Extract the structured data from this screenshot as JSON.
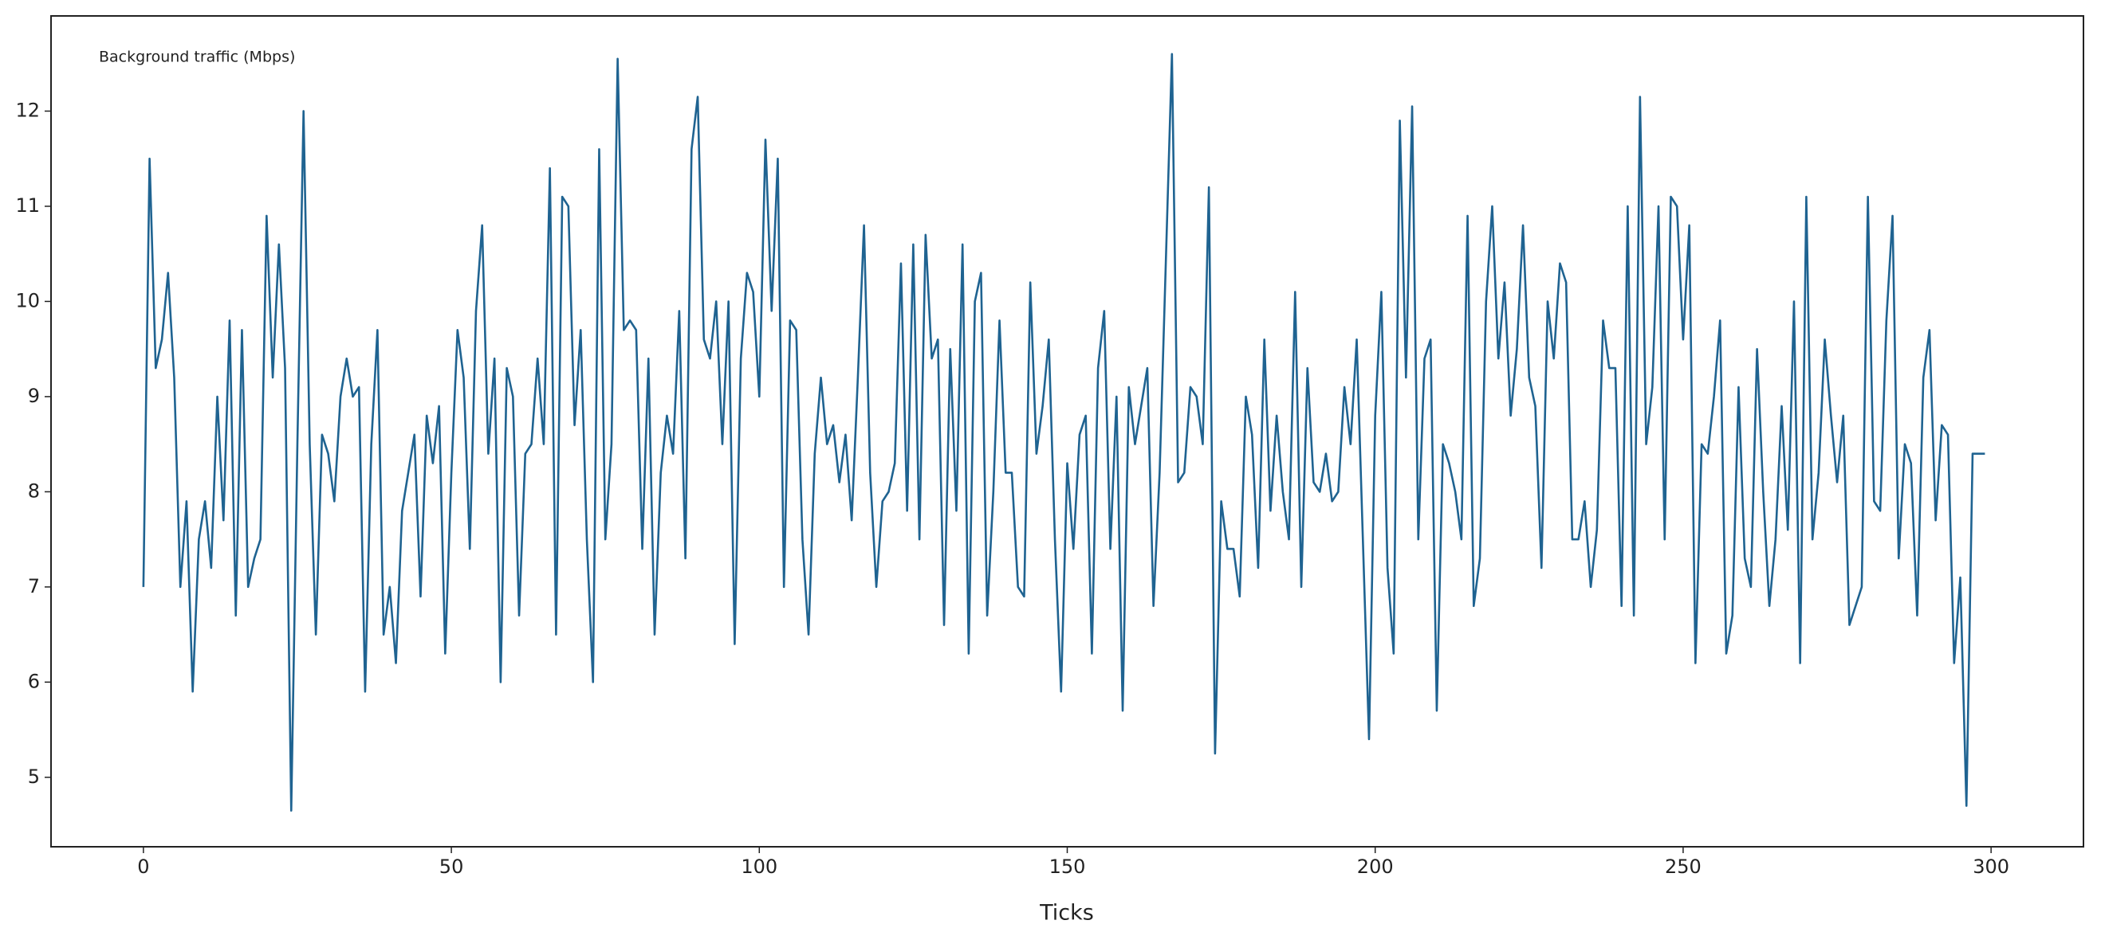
{
  "chart_data": {
    "type": "line",
    "annotation": "Background traffic (Mbps)",
    "xlabel": "Ticks",
    "color": "#1f6391",
    "x": [
      0,
      1,
      2,
      3,
      4,
      5,
      6,
      7,
      8,
      9,
      10,
      11,
      12,
      13,
      14,
      15,
      16,
      17,
      18,
      19,
      20,
      21,
      22,
      23,
      24,
      25,
      26,
      27,
      28,
      29,
      30,
      31,
      32,
      33,
      34,
      35,
      36,
      37,
      38,
      39,
      40,
      41,
      42,
      43,
      44,
      45,
      46,
      47,
      48,
      49,
      50,
      51,
      52,
      53,
      54,
      55,
      56,
      57,
      58,
      59,
      60,
      61,
      62,
      63,
      64,
      65,
      66,
      67,
      68,
      69,
      70,
      71,
      72,
      73,
      74,
      75,
      76,
      77,
      78,
      79,
      80,
      81,
      82,
      83,
      84,
      85,
      86,
      87,
      88,
      89,
      90,
      91,
      92,
      93,
      94,
      95,
      96,
      97,
      98,
      99,
      100,
      101,
      102,
      103,
      104,
      105,
      106,
      107,
      108,
      109,
      110,
      111,
      112,
      113,
      114,
      115,
      116,
      117,
      118,
      119,
      120,
      121,
      122,
      123,
      124,
      125,
      126,
      127,
      128,
      129,
      130,
      131,
      132,
      133,
      134,
      135,
      136,
      137,
      138,
      139,
      140,
      141,
      142,
      143,
      144,
      145,
      146,
      147,
      148,
      149,
      150,
      151,
      152,
      153,
      154,
      155,
      156,
      157,
      158,
      159,
      160,
      161,
      162,
      163,
      164,
      165,
      166,
      167,
      168,
      169,
      170,
      171,
      172,
      173,
      174,
      175,
      176,
      177,
      178,
      179,
      180,
      181,
      182,
      183,
      184,
      185,
      186,
      187,
      188,
      189,
      190,
      191,
      192,
      193,
      194,
      195,
      196,
      197,
      198,
      199,
      200,
      201,
      202,
      203,
      204,
      205,
      206,
      207,
      208,
      209,
      210,
      211,
      212,
      213,
      214,
      215,
      216,
      217,
      218,
      219,
      220,
      221,
      222,
      223,
      224,
      225,
      226,
      227,
      228,
      229,
      230,
      231,
      232,
      233,
      234,
      235,
      236,
      237,
      238,
      239,
      240,
      241,
      242,
      243,
      244,
      245,
      246,
      247,
      248,
      249,
      250,
      251,
      252,
      253,
      254,
      255,
      256,
      257,
      258,
      259,
      260,
      261,
      262,
      263,
      264,
      265,
      266,
      267,
      268,
      269,
      270,
      271,
      272,
      273,
      274,
      275,
      276,
      277,
      278,
      279,
      280,
      281,
      282,
      283,
      284,
      285,
      286,
      287,
      288,
      289,
      290,
      291,
      292,
      293,
      294,
      295,
      296,
      297,
      298,
      299
    ],
    "values": [
      7.0,
      11.5,
      9.3,
      9.6,
      10.3,
      9.2,
      7.0,
      7.9,
      5.9,
      7.5,
      7.9,
      7.2,
      9.0,
      7.7,
      9.8,
      6.7,
      9.7,
      7.0,
      7.3,
      7.5,
      10.9,
      9.2,
      10.6,
      9.3,
      4.65,
      8.5,
      12.0,
      8.5,
      6.5,
      8.6,
      8.4,
      7.9,
      9.0,
      9.4,
      9.0,
      9.1,
      5.9,
      8.5,
      9.7,
      6.5,
      7.0,
      6.2,
      7.8,
      8.2,
      8.6,
      6.9,
      8.8,
      8.3,
      8.9,
      6.3,
      8.2,
      9.7,
      9.2,
      7.4,
      9.9,
      10.8,
      8.4,
      9.4,
      6.0,
      9.3,
      9.0,
      6.7,
      8.4,
      8.5,
      9.4,
      8.5,
      11.4,
      6.5,
      11.1,
      11.0,
      8.7,
      9.7,
      7.5,
      6.0,
      11.6,
      7.5,
      8.5,
      12.55,
      9.7,
      9.8,
      9.7,
      7.4,
      9.4,
      6.5,
      8.2,
      8.8,
      8.4,
      9.9,
      7.3,
      11.6,
      12.15,
      9.6,
      9.4,
      10.0,
      8.5,
      10.0,
      6.4,
      9.4,
      10.3,
      10.1,
      9.0,
      11.7,
      9.9,
      11.5,
      7.0,
      9.8,
      9.7,
      7.5,
      6.5,
      8.4,
      9.2,
      8.5,
      8.7,
      8.1,
      8.6,
      7.7,
      9.2,
      10.8,
      8.2,
      7.0,
      7.9,
      8.0,
      8.3,
      10.4,
      7.8,
      10.6,
      7.5,
      10.7,
      9.4,
      9.6,
      6.6,
      9.5,
      7.8,
      10.6,
      6.3,
      10.0,
      10.3,
      6.7,
      8.0,
      9.8,
      8.2,
      8.2,
      7.0,
      6.9,
      10.2,
      8.4,
      8.9,
      9.6,
      7.5,
      5.9,
      8.3,
      7.4,
      8.6,
      8.8,
      6.3,
      9.3,
      9.9,
      7.4,
      9.0,
      5.7,
      9.1,
      8.5,
      8.9,
      9.3,
      6.8,
      8.2,
      10.4,
      12.6,
      8.1,
      8.2,
      9.1,
      9.0,
      8.5,
      11.2,
      5.25,
      7.9,
      7.4,
      7.4,
      6.9,
      9.0,
      8.6,
      7.2,
      9.6,
      7.8,
      8.8,
      8.0,
      7.5,
      10.1,
      7.0,
      9.3,
      8.1,
      8.0,
      8.4,
      7.9,
      8.0,
      9.1,
      8.5,
      9.6,
      7.5,
      5.4,
      8.8,
      10.1,
      7.2,
      6.3,
      11.9,
      9.2,
      12.05,
      7.5,
      9.4,
      9.6,
      5.7,
      8.5,
      8.3,
      8.0,
      7.5,
      10.9,
      6.8,
      7.3,
      10.0,
      11.0,
      9.4,
      10.2,
      8.8,
      9.5,
      10.8,
      9.2,
      8.9,
      7.2,
      10.0,
      9.4,
      10.4,
      10.2,
      7.5,
      7.5,
      7.9,
      7.0,
      7.6,
      9.8,
      9.3,
      9.3,
      6.8,
      11.0,
      6.7,
      12.15,
      8.5,
      9.1,
      11.0,
      7.5,
      11.1,
      11.0,
      9.6,
      10.8,
      6.2,
      8.5,
      8.4,
      9.0,
      9.8,
      6.3,
      6.7,
      9.1,
      7.3,
      7.0,
      9.5,
      8.0,
      6.8,
      7.5,
      8.9,
      7.6,
      10.0,
      6.2,
      11.1,
      7.5,
      8.2,
      9.6,
      8.8,
      8.1,
      8.8,
      6.6,
      6.8,
      7.0,
      11.1,
      7.9,
      7.8,
      9.8,
      10.9,
      7.3,
      8.5,
      8.3,
      6.7,
      9.2,
      9.7,
      7.7,
      8.7,
      8.6,
      6.2,
      7.1,
      4.7,
      8.4,
      8.4,
      8.4
    ],
    "xlim": [
      -15,
      315
    ],
    "xticks": [
      0,
      50,
      100,
      150,
      200,
      250,
      300
    ],
    "ylim": [
      4.27,
      13.0
    ],
    "yticks": [
      5,
      6,
      7,
      8,
      9,
      10,
      11,
      12
    ]
  }
}
